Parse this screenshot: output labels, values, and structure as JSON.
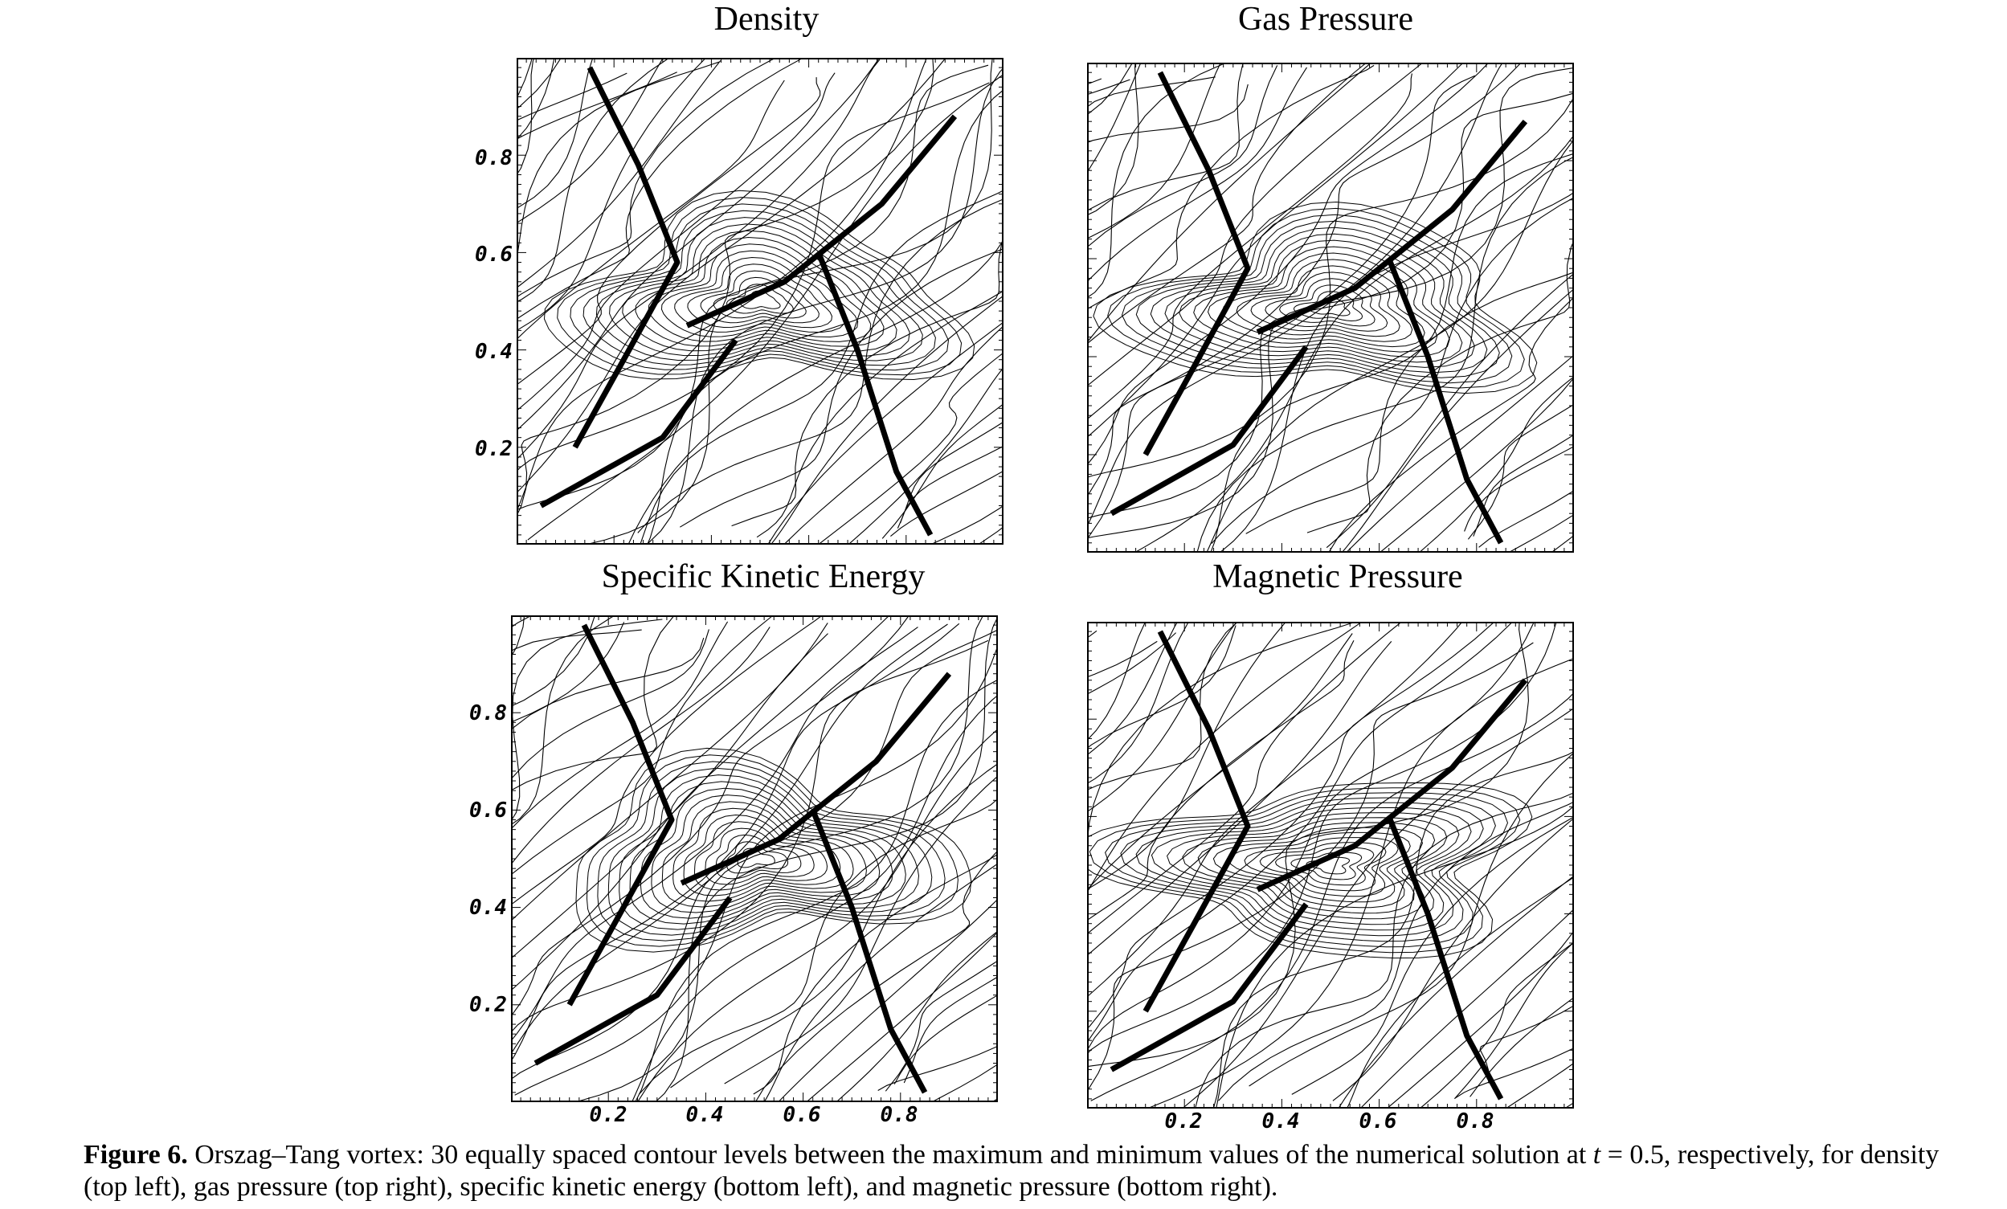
{
  "panels": [
    {
      "id": "density",
      "title": "Density"
    },
    {
      "id": "gas-pressure",
      "title": "Gas Pressure"
    },
    {
      "id": "kinetic",
      "title": "Specific Kinetic Energy"
    },
    {
      "id": "magnetic",
      "title": "Magnetic Pressure"
    }
  ],
  "axes": {
    "y_ticks": [
      "0.8",
      "0.6",
      "0.4",
      "0.2"
    ],
    "x_ticks": [
      "0.2",
      "0.4",
      "0.6",
      "0.8"
    ]
  },
  "caption": {
    "label": "Figure 6.",
    "text_1": " Orszag–Tang vortex: 30 equally spaced contour levels between the maximum and minimum values of the numerical solution at ",
    "var": "t",
    "text_2": " = 0.5, respectively, for density (top left), gas pressure (top right), specific kinetic energy (bottom left), and magnetic pressure (bottom right)."
  }
}
